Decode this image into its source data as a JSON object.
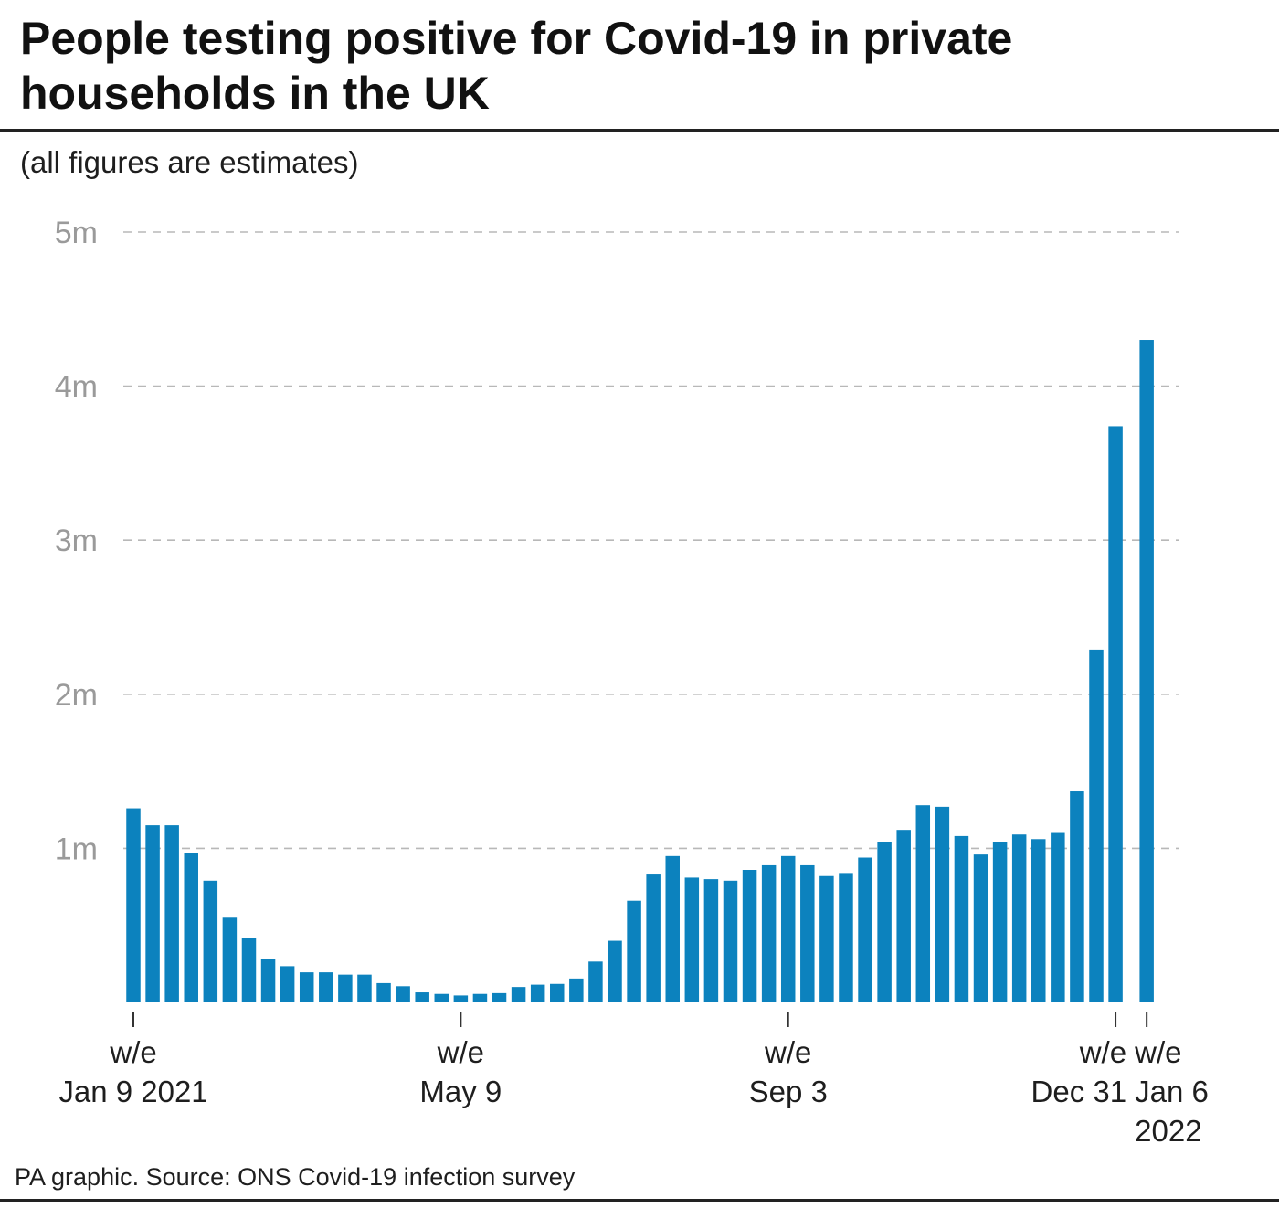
{
  "header": {
    "title": "People testing positive for Covid-19 in private households in the UK",
    "subtitle": "(all figures are estimates)"
  },
  "footer": {
    "source": "PA graphic. Source: ONS Covid-19 infection survey"
  },
  "colors": {
    "bar": "#0c82be",
    "grid": "#b8b8b8",
    "tick_text": "#9a9a9a",
    "text": "#1e1e1e"
  },
  "chart_data": {
    "type": "bar",
    "title": "People testing positive for Covid-19 in private households in the UK",
    "subtitle": "(all figures are estimates)",
    "xlabel": "",
    "ylabel": "",
    "unit": "people",
    "ylim": [
      0,
      5000000
    ],
    "grid": true,
    "yticks": [
      {
        "value": 1000000,
        "label": "1m"
      },
      {
        "value": 2000000,
        "label": "2m"
      },
      {
        "value": 3000000,
        "label": "3m"
      },
      {
        "value": 4000000,
        "label": "4m"
      },
      {
        "value": 5000000,
        "label": "5m"
      }
    ],
    "xticks": [
      {
        "index": 0,
        "lines": [
          "w/e",
          "Jan 9 2021"
        ]
      },
      {
        "index": 17,
        "lines": [
          "w/e",
          "May 9"
        ]
      },
      {
        "index": 34,
        "lines": [
          "w/e",
          "Sep 3"
        ]
      },
      {
        "index": 51,
        "lines": [
          "w/e",
          "Dec 31"
        ]
      },
      {
        "index": 52,
        "lines": [
          "w/e",
          "Jan 6",
          "2022"
        ]
      }
    ],
    "series": [
      {
        "name": "People testing positive",
        "values": [
          1260000,
          1150000,
          1150000,
          970000,
          790000,
          550000,
          420000,
          280000,
          235000,
          195000,
          195000,
          180000,
          180000,
          125000,
          105000,
          65000,
          55000,
          45000,
          55000,
          60000,
          100000,
          115000,
          120000,
          155000,
          265000,
          400000,
          660000,
          830000,
          950000,
          810000,
          800000,
          790000,
          860000,
          890000,
          950000,
          890000,
          820000,
          840000,
          940000,
          1040000,
          1120000,
          1280000,
          1270000,
          1080000,
          960000,
          1040000,
          1090000,
          1060000,
          1100000,
          1370000,
          2290000,
          3740000,
          4300000
        ]
      }
    ]
  }
}
